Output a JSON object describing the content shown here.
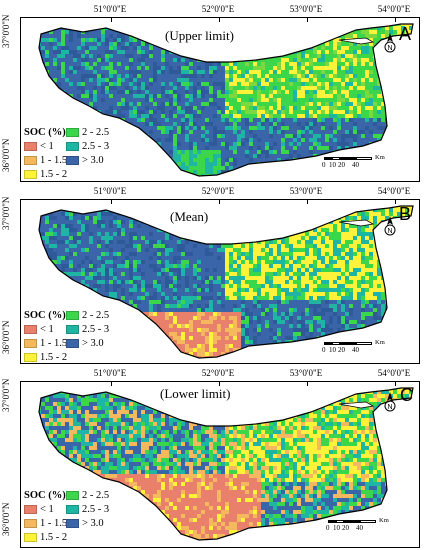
{
  "longitude_labels": [
    "51°0'0\"E",
    "52°0'0\"E",
    "53°0'0\"E",
    "54°0'0\"E"
  ],
  "latitude_labels": [
    "37°0'0\"N",
    "36°0'0\"N"
  ],
  "legend": {
    "title": "SOC (%)",
    "classes": [
      {
        "label": "< 1",
        "color": "#e8806b"
      },
      {
        "label": "1 - 1.5",
        "color": "#f4b85f"
      },
      {
        "label": "1.5 - 2",
        "color": "#fff23a"
      },
      {
        "label": "2 - 2.5",
        "color": "#3bd64a"
      },
      {
        "label": "2.5 - 3",
        "color": "#1fb5a3"
      },
      {
        "label": "> 3.0",
        "color": "#3a65a8"
      }
    ]
  },
  "scale_bar": {
    "ticks": [
      "0",
      "10",
      "20",
      "40"
    ],
    "unit": "Km"
  },
  "panels": [
    {
      "title": "(Upper limit)",
      "letter": "A"
    },
    {
      "title": "(Mean)",
      "letter": "B"
    },
    {
      "title": "(Lower limit)",
      "letter": "C"
    }
  ],
  "colors": {
    "outline": "#000000",
    "sea": "#ffffff",
    "upper_limit_palette": [
      "#3a65a8",
      "#2f5a9a",
      "#1fb5a3",
      "#3bd64a",
      "#7cd83f",
      "#c6e44a",
      "#fff23a"
    ],
    "mean_palette": [
      "#3a65a8",
      "#2f5a9a",
      "#1fb5a3",
      "#3bd64a",
      "#fff23a",
      "#f4b85f",
      "#e8806b"
    ],
    "lower_limit_palette": [
      "#e8806b",
      "#f4b85f",
      "#fff23a",
      "#3bd64a",
      "#1fb5a3",
      "#3a65a8"
    ]
  }
}
